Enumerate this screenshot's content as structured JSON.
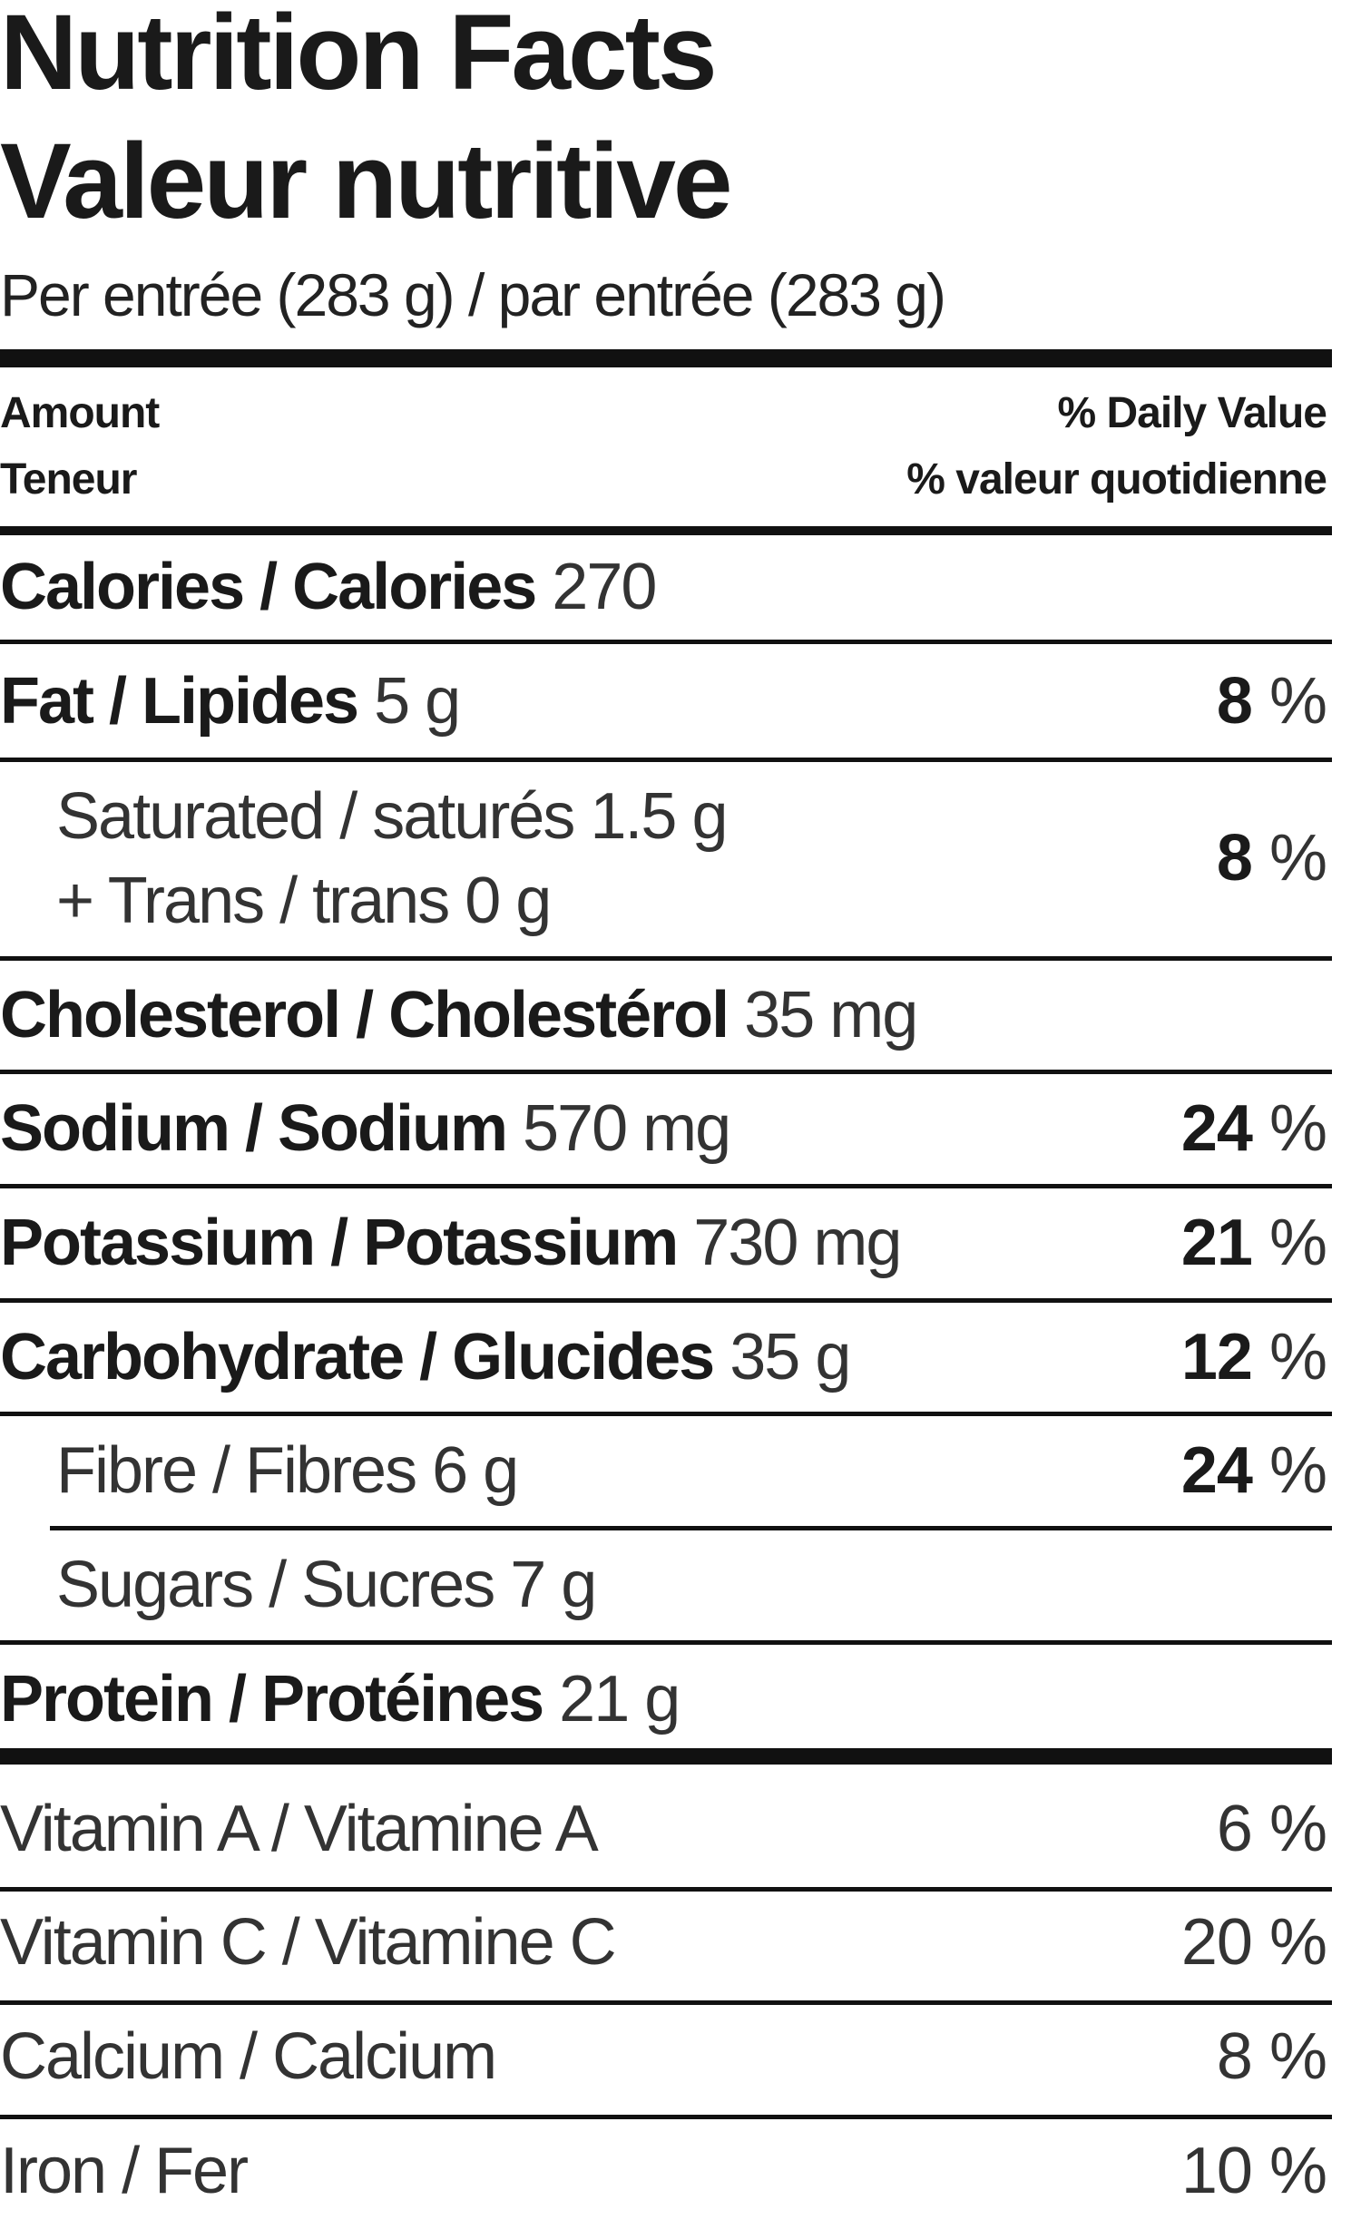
{
  "title_en": "Nutrition Facts",
  "title_fr": "Valeur nutritive",
  "serving": "Per entrée (283 g) / par entrée (283 g)",
  "header": {
    "amount_en": "Amount",
    "amount_fr": "Teneur",
    "dv_en": "% Daily Value",
    "dv_fr": "% valeur quotidienne"
  },
  "nutrients": {
    "calories": {
      "label": "Calories / Calories",
      "amount": "270"
    },
    "fat": {
      "label": "Fat / Lipides",
      "amount": "5 g",
      "dv": "8"
    },
    "saturated": {
      "label": "Saturated / saturés",
      "amount": "1.5 g"
    },
    "trans": {
      "label": "+ Trans / trans",
      "amount": "0 g",
      "dv": "8"
    },
    "cholesterol": {
      "label": "Cholesterol / Cholestérol",
      "amount": "35 mg"
    },
    "sodium": {
      "label": "Sodium / Sodium",
      "amount": "570 mg",
      "dv": "24"
    },
    "potassium": {
      "label": "Potassium / Potassium",
      "amount": "730 mg",
      "dv": "21"
    },
    "carbohydrate": {
      "label": "Carbohydrate / Glucides",
      "amount": "35 g",
      "dv": "12"
    },
    "fibre": {
      "label": "Fibre / Fibres",
      "amount": "6 g",
      "dv": "24"
    },
    "sugars": {
      "label": "Sugars / Sucres",
      "amount": "7 g"
    },
    "protein": {
      "label": "Protein / Protéines",
      "amount": "21 g"
    }
  },
  "vitamins": {
    "vitamin_a": {
      "label": "Vitamin A / Vitamine A",
      "dv": "6 %"
    },
    "vitamin_c": {
      "label": "Vitamin C / Vitamine C",
      "dv": "20 %"
    },
    "calcium": {
      "label": "Calcium / Calcium",
      "dv": "8 %"
    },
    "iron": {
      "label": "Iron / Fer",
      "dv": "10 %"
    }
  },
  "percent_sign": "%"
}
